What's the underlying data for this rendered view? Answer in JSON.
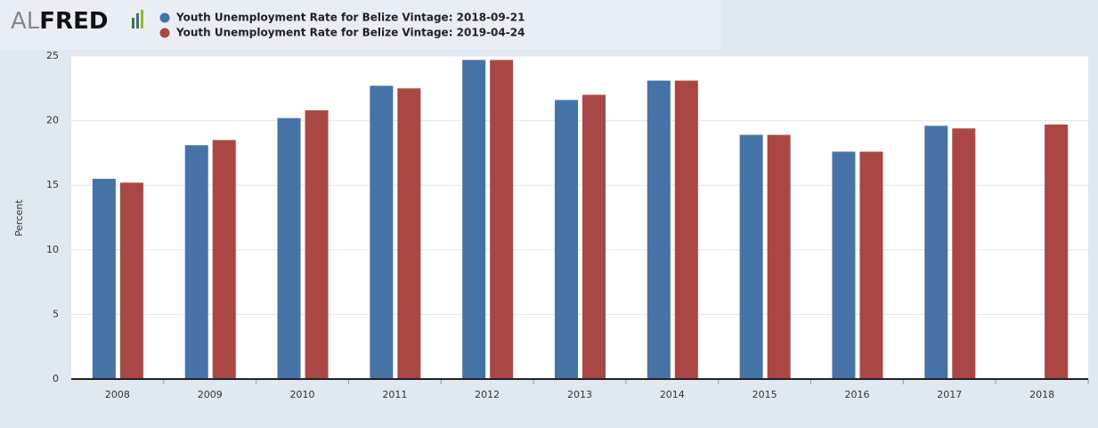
{
  "logo": {
    "part1": "AL",
    "part2": "FRED"
  },
  "chart_data": {
    "type": "bar",
    "y_label": "Percent",
    "categories": [
      "2008",
      "2009",
      "2010",
      "2011",
      "2012",
      "2013",
      "2014",
      "2015",
      "2016",
      "2017",
      "2018"
    ],
    "series": [
      {
        "name": "Youth Unemployment Rate for Belize Vintage: 2018-09-21",
        "color": "#4572a7",
        "values": [
          15.5,
          18.1,
          20.2,
          22.7,
          24.7,
          21.6,
          23.1,
          18.9,
          17.6,
          19.6,
          null
        ]
      },
      {
        "name": "Youth Unemployment Rate for Belize Vintage: 2019-04-24",
        "color": "#aa4643",
        "values": [
          15.2,
          18.5,
          20.8,
          22.5,
          24.7,
          22.0,
          23.1,
          18.9,
          17.6,
          19.4,
          19.7
        ]
      }
    ],
    "ylim": [
      0,
      25
    ],
    "yticks": [
      0,
      5,
      10,
      15,
      20,
      25
    ],
    "grid": true
  }
}
